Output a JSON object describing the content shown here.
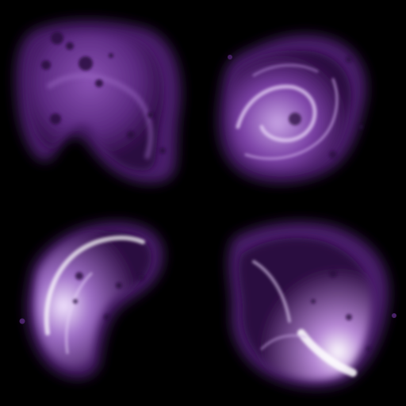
{
  "image": {
    "kind": "sprite-sheet",
    "background": "#000000",
    "grid": {
      "rows": 2,
      "cols": 2
    },
    "palette": {
      "deep": "#2a0a3f",
      "mid": "#6a2f93",
      "bright": "#a070c8",
      "highlight": "#f4e8ff",
      "spot": "#3a1050"
    },
    "tiles": [
      {
        "name": "smoke-wisp-top-left",
        "shape": "hooked-cloud",
        "has_spots": true,
        "glow": "dim"
      },
      {
        "name": "smoke-wisp-top-right",
        "shape": "swirl",
        "has_spots": true,
        "glow": "medium"
      },
      {
        "name": "smoke-wisp-bottom-left",
        "shape": "curl",
        "has_spots": true,
        "glow": "bright-edge"
      },
      {
        "name": "smoke-wisp-bottom-right",
        "shape": "flame-tail",
        "has_spots": true,
        "glow": "bright-core"
      }
    ]
  }
}
